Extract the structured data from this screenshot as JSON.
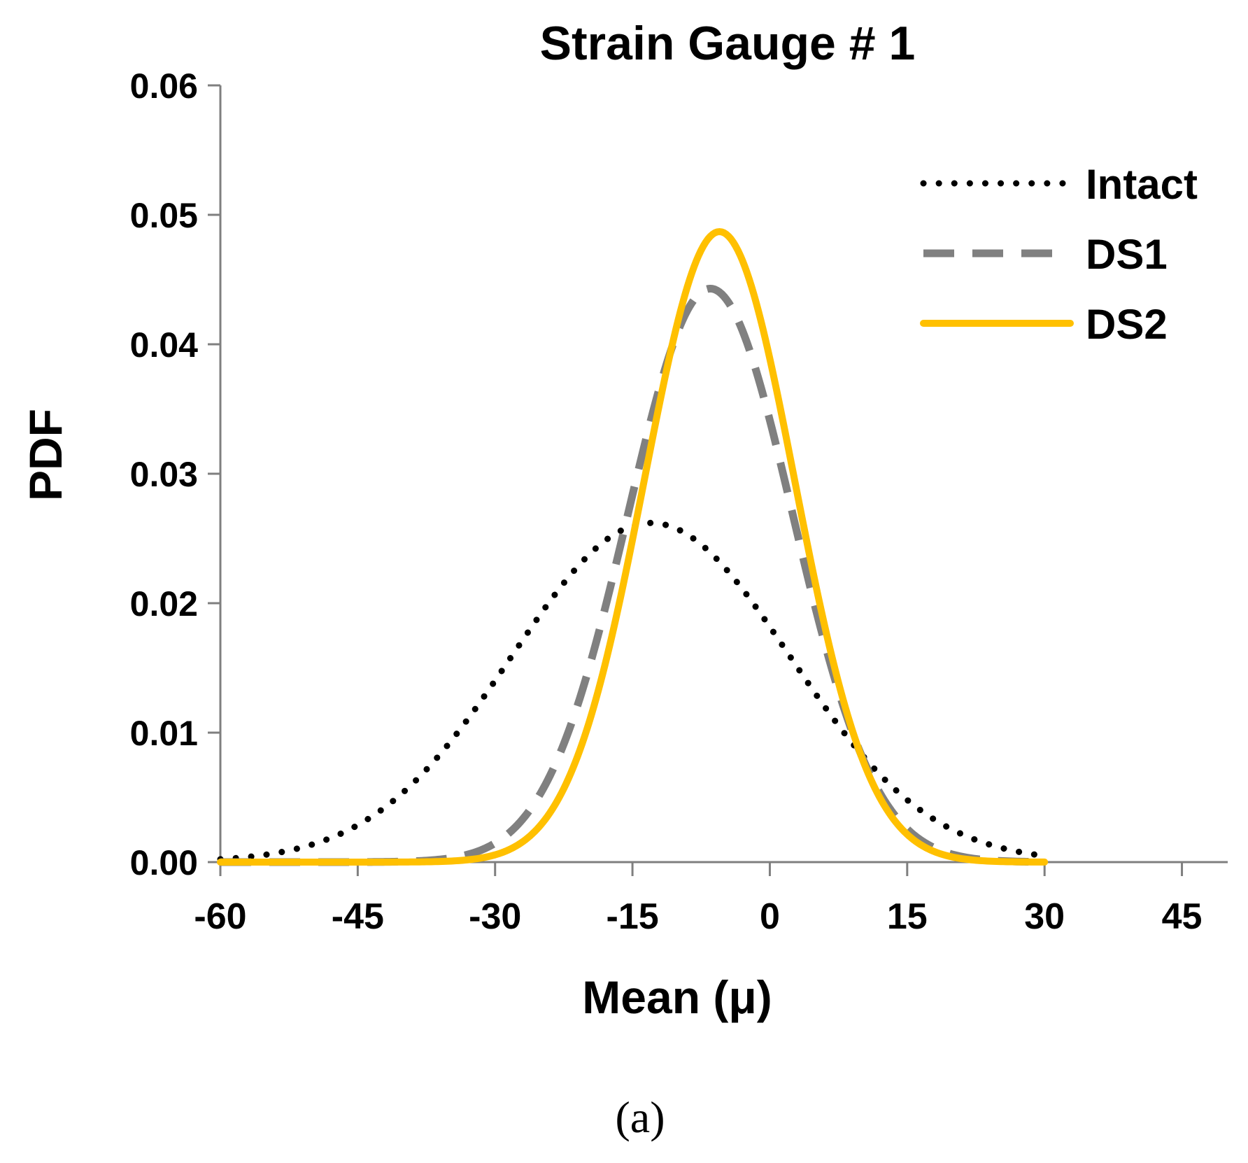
{
  "chart_data": {
    "type": "line",
    "title": "Strain Gauge # 1",
    "xlabel": "Mean (μ)",
    "ylabel": "PDF",
    "xlim": [
      -60,
      50
    ],
    "ylim": [
      0,
      0.06
    ],
    "x_ticks": [
      "-60",
      "-45",
      "-30",
      "-15",
      "0",
      "15",
      "30",
      "45"
    ],
    "x_tick_values": [
      -60,
      -45,
      -30,
      -15,
      0,
      15,
      30,
      45
    ],
    "y_ticks": [
      "0.00",
      "0.01",
      "0.02",
      "0.03",
      "0.04",
      "0.05",
      "0.06"
    ],
    "y_tick_values": [
      0,
      0.01,
      0.02,
      0.03,
      0.04,
      0.05,
      0.06
    ],
    "x_range_plotted": [
      -60,
      30
    ],
    "legend_position": "top-right",
    "grid": false,
    "series": [
      {
        "name": "Intact",
        "style": "dotted",
        "color": "#000000",
        "distribution": "normal",
        "mean": -13,
        "std": 15.2,
        "peak": 0.0262
      },
      {
        "name": "DS1",
        "style": "dashed",
        "color": "#808080",
        "distribution": "normal",
        "mean": -6.5,
        "std": 9.0,
        "peak": 0.0443
      },
      {
        "name": "DS2",
        "style": "solid",
        "color": "#FFC000",
        "distribution": "normal",
        "mean": -5.5,
        "std": 8.2,
        "peak": 0.0487
      }
    ]
  },
  "caption": "(a)"
}
